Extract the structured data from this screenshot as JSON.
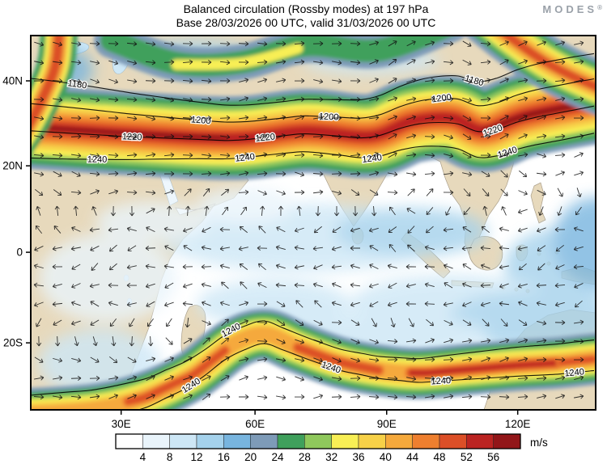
{
  "header": {
    "title_line1": "Balanced circulation (Rossby modes) at 197 hPa",
    "title_line2": "Base 28/03/2026 00 UTC, valid 31/03/2026 00 UTC",
    "logo": "MODES",
    "logo_reg": "®"
  },
  "chart_data": {
    "type": "heatmap",
    "title": "Balanced circulation (Rossby modes) at 197 hPa",
    "subtitle": "Base 28/03/2026 00 UTC, valid 31/03/2026 00 UTC",
    "pressure_level": "197 hPa",
    "base_time": "28/03/2026 00 UTC",
    "valid_time": "31/03/2026 00 UTC",
    "units": "m/s",
    "x_ticks": [
      {
        "label": "30E",
        "f": 0.16
      },
      {
        "label": "60E",
        "f": 0.397
      },
      {
        "label": "90E",
        "f": 0.63
      },
      {
        "label": "120E",
        "f": 0.862
      }
    ],
    "y_ticks": [
      {
        "label": "40N",
        "f": 0.121
      },
      {
        "label": "20N",
        "f": 0.348
      },
      {
        "label": "0",
        "f": 0.579
      },
      {
        "label": "20S",
        "f": 0.821
      }
    ],
    "colorbar": {
      "levels": [
        4,
        8,
        12,
        16,
        20,
        24,
        28,
        32,
        36,
        40,
        44,
        48,
        52,
        56
      ],
      "colors": [
        "#ffffff",
        "#e9f4fb",
        "#cde7f6",
        "#a5d2ec",
        "#78b5df",
        "#7e9bb8",
        "#3fa05c",
        "#8fc85c",
        "#f8ef55",
        "#f7d148",
        "#f5a93c",
        "#ee7f2f",
        "#dc4f27",
        "#bb2422",
        "#921619"
      ],
      "units_label": "m/s"
    },
    "contour_values": [
      1180,
      1200,
      1220,
      1240
    ],
    "contour_labels": [
      {
        "value": 1180,
        "band": "n",
        "x": 57
      },
      {
        "value": 1180,
        "band": "n",
        "x": 547
      },
      {
        "value": 1200,
        "band": "n",
        "x": 210
      },
      {
        "value": 1200,
        "band": "n",
        "x": 368
      },
      {
        "value": 1200,
        "band": "n",
        "x": 508
      },
      {
        "value": 1220,
        "band": "n",
        "x": 125
      },
      {
        "value": 1220,
        "band": "n",
        "x": 290
      },
      {
        "value": 1220,
        "band": "n",
        "x": 572
      },
      {
        "value": 1240,
        "band": "n",
        "x": 82
      },
      {
        "value": 1240,
        "band": "n",
        "x": 265
      },
      {
        "value": 1240,
        "band": "n",
        "x": 422
      },
      {
        "value": 1240,
        "band": "n",
        "x": 590
      },
      {
        "value": 1240,
        "band": "s_upper",
        "x": 249
      },
      {
        "value": 1240,
        "band": "s_lower",
        "x": 200
      },
      {
        "value": 1240,
        "band": "s_lower",
        "x": 370
      },
      {
        "value": 1240,
        "band": "s_lower",
        "x": 507
      },
      {
        "value": 1240,
        "band": "s_lower",
        "x": 672
      }
    ],
    "features": [
      "strong westerly jet band across ~25-35N with cores above 52 m/s",
      "southern-hemisphere jet band near 25-35S with cores above 48 m/s",
      "weak / westward flow near the equator (mostly below 12 m/s)"
    ]
  }
}
